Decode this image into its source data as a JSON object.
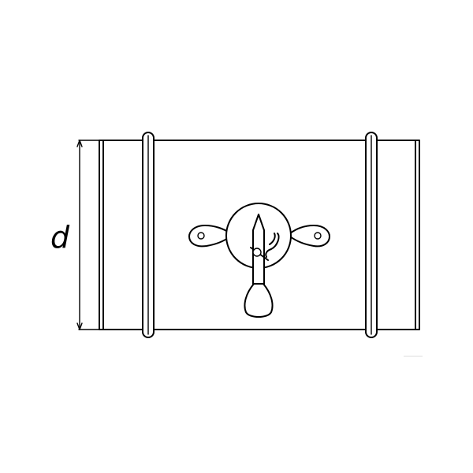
{
  "diagram": {
    "dimension_label": "d",
    "components": {
      "duct_body": "duct",
      "left_clamp": "clamp",
      "right_clamp": "clamp",
      "handle": "damper-handle",
      "dimension": "diameter-dimension"
    },
    "colors": {
      "stroke": "#000000",
      "background": "#ffffff"
    }
  }
}
